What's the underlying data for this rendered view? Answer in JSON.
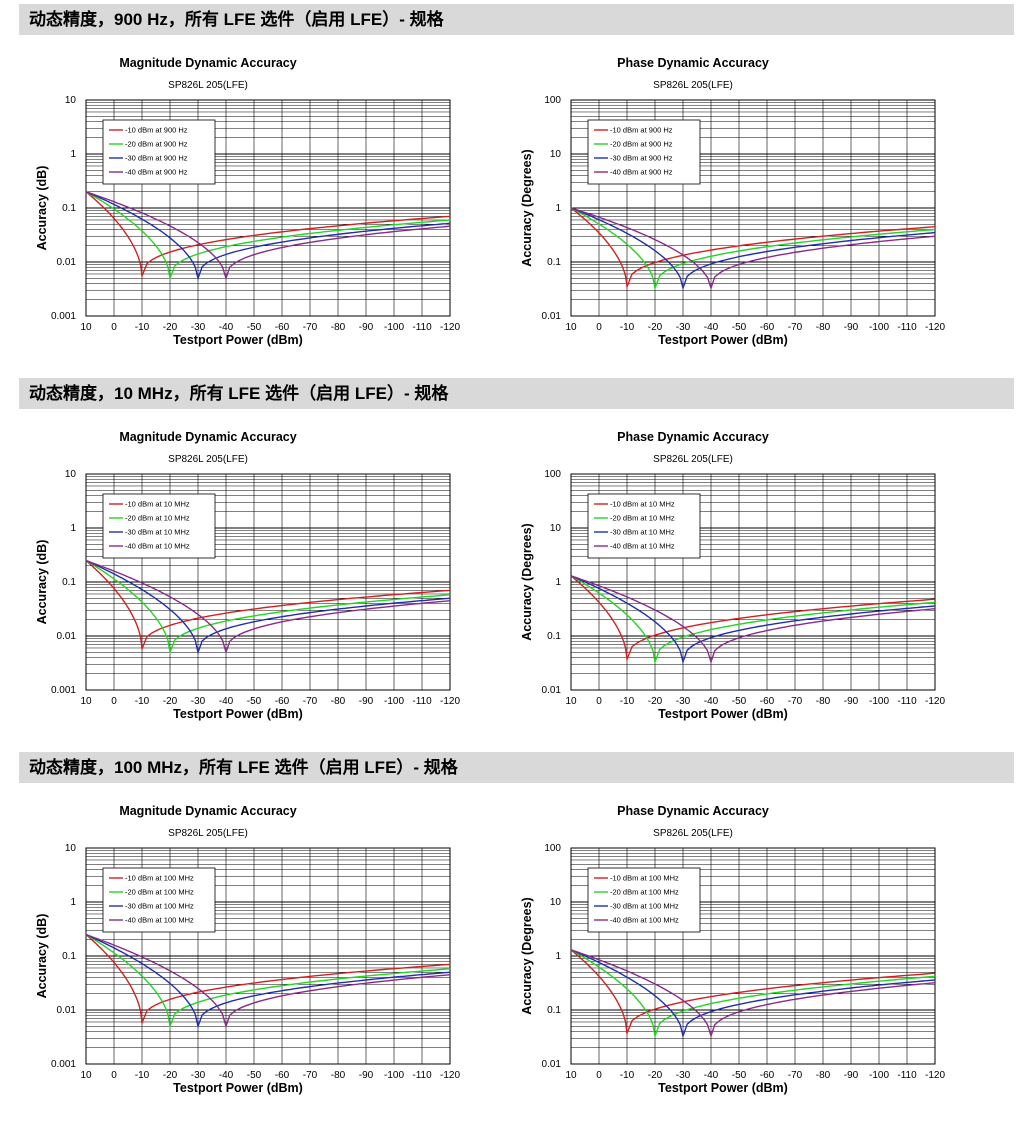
{
  "sections": [
    {
      "header": "动态精度，900 Hz，所有 LFE 选件（启用 LFE）- 规格",
      "charts": [
        {
          "type": "line",
          "title": "Magnitude Dynamic Accuracy",
          "subtitle": "SP826L 205(LFE)",
          "xlabel": "Testport Power (dBm)",
          "ylabel": "Accuracy (dB)",
          "xlim": [
            10,
            -120
          ],
          "ylim": [
            0.001,
            10
          ],
          "yscale": "log",
          "x_ticks": [
            "10",
            "0",
            "-10",
            "-20",
            "-30",
            "-40",
            "-50",
            "-60",
            "-70",
            "-80",
            "-90",
            "-100",
            "-110",
            "-120"
          ],
          "y_ticks": [
            "10",
            "1",
            "0.1",
            "0.01",
            "0.001"
          ],
          "legend": [
            "-10 dBm at 900 Hz",
            "-20 dBm at 900 Hz",
            "-30 dBm at 900 Hz",
            "-40 dBm at 900 Hz"
          ],
          "series": [
            {
              "name": "-10 dBm at 900 Hz",
              "ref": -10,
              "floor": 0.0055,
              "start": 0.2,
              "end": 0.07
            },
            {
              "name": "-20 dBm at 900 Hz",
              "ref": -20,
              "floor": 0.005,
              "start": 0.2,
              "end": 0.06
            },
            {
              "name": "-30 dBm at 900 Hz",
              "ref": -30,
              "floor": 0.005,
              "start": 0.2,
              "end": 0.052
            },
            {
              "name": "-40 dBm at 900 Hz",
              "ref": -40,
              "floor": 0.005,
              "start": 0.2,
              "end": 0.046
            }
          ]
        },
        {
          "type": "line",
          "title": "Phase Dynamic Accuracy",
          "subtitle": "SP826L 205(LFE)",
          "xlabel": "Testport Power (dBm)",
          "ylabel": "Accuracy (Degrees)",
          "xlim": [
            10,
            -120
          ],
          "ylim": [
            0.01,
            100
          ],
          "yscale": "log",
          "x_ticks": [
            "10",
            "0",
            "-10",
            "-20",
            "-30",
            "-40",
            "-50",
            "-60",
            "-70",
            "-80",
            "-90",
            "-100",
            "-110",
            "-120"
          ],
          "y_ticks": [
            "100",
            "10",
            "1",
            "0.1",
            "0.01"
          ],
          "legend": [
            "-10 dBm at 900 Hz",
            "-20 dBm at 900 Hz",
            "-30 dBm at 900 Hz",
            "-40 dBm at 900 Hz"
          ],
          "series": [
            {
              "name": "-10 dBm at 900 Hz",
              "ref": -10,
              "floor": 0.035,
              "start": 1.0,
              "end": 0.45
            },
            {
              "name": "-20 dBm at 900 Hz",
              "ref": -20,
              "floor": 0.033,
              "start": 1.0,
              "end": 0.4
            },
            {
              "name": "-30 dBm at 900 Hz",
              "ref": -30,
              "floor": 0.033,
              "start": 1.0,
              "end": 0.35
            },
            {
              "name": "-40 dBm at 900 Hz",
              "ref": -40,
              "floor": 0.033,
              "start": 1.0,
              "end": 0.3
            }
          ]
        }
      ]
    },
    {
      "header": "动态精度，10 MHz，所有 LFE 选件（启用 LFE）- 规格",
      "charts": [
        {
          "type": "line",
          "title": "Magnitude Dynamic Accuracy",
          "subtitle": "SP826L 205(LFE)",
          "xlabel": "Testport Power (dBm)",
          "ylabel": "Accuracy (dB)",
          "xlim": [
            10,
            -120
          ],
          "ylim": [
            0.001,
            10
          ],
          "yscale": "log",
          "x_ticks": [
            "10",
            "0",
            "-10",
            "-20",
            "-30",
            "-40",
            "-50",
            "-60",
            "-70",
            "-80",
            "-90",
            "-100",
            "-110",
            "-120"
          ],
          "y_ticks": [
            "10",
            "1",
            "0.1",
            "0.01",
            "0.001"
          ],
          "legend": [
            "-10 dBm at 10 MHz",
            "-20 dBm at 10 MHz",
            "-30 dBm at 10 MHz",
            "-40 dBm at 10 MHz"
          ],
          "series": [
            {
              "name": "-10 dBm at 10 MHz",
              "ref": -10,
              "floor": 0.0058,
              "start": 0.25,
              "end": 0.07
            },
            {
              "name": "-20 dBm at 10 MHz",
              "ref": -20,
              "floor": 0.005,
              "start": 0.25,
              "end": 0.058
            },
            {
              "name": "-30 dBm at 10 MHz",
              "ref": -30,
              "floor": 0.005,
              "start": 0.25,
              "end": 0.05
            },
            {
              "name": "-40 dBm at 10 MHz",
              "ref": -40,
              "floor": 0.005,
              "start": 0.25,
              "end": 0.045
            }
          ]
        },
        {
          "type": "line",
          "title": "Phase Dynamic Accuracy",
          "subtitle": "SP826L 205(LFE)",
          "xlabel": "Testport Power (dBm)",
          "ylabel": "Accuracy (Degrees)",
          "xlim": [
            10,
            -120
          ],
          "ylim": [
            0.01,
            100
          ],
          "yscale": "log",
          "x_ticks": [
            "10",
            "0",
            "-10",
            "-20",
            "-30",
            "-40",
            "-50",
            "-60",
            "-70",
            "-80",
            "-90",
            "-100",
            "-110",
            "-120"
          ],
          "y_ticks": [
            "100",
            "10",
            "1",
            "0.1",
            "0.01"
          ],
          "legend": [
            "-10 dBm at 10 MHz",
            "-20 dBm at 10 MHz",
            "-30 dBm at 10 MHz",
            "-40 dBm at 10 MHz"
          ],
          "series": [
            {
              "name": "-10 dBm at 10 MHz",
              "ref": -10,
              "floor": 0.037,
              "start": 1.3,
              "end": 0.48
            },
            {
              "name": "-20 dBm at 10 MHz",
              "ref": -20,
              "floor": 0.033,
              "start": 1.3,
              "end": 0.42
            },
            {
              "name": "-30 dBm at 10 MHz",
              "ref": -30,
              "floor": 0.033,
              "start": 1.3,
              "end": 0.36
            },
            {
              "name": "-40 dBm at 10 MHz",
              "ref": -40,
              "floor": 0.033,
              "start": 1.3,
              "end": 0.32
            }
          ]
        }
      ]
    },
    {
      "header": "动态精度，100 MHz，所有 LFE 选件（启用 LFE）- 规格",
      "charts": [
        {
          "type": "line",
          "title": "Magnitude Dynamic Accuracy",
          "subtitle": "SP826L 205(LFE)",
          "xlabel": "Testport Power (dBm)",
          "ylabel": "Accuracy (dB)",
          "xlim": [
            10,
            -120
          ],
          "ylim": [
            0.001,
            10
          ],
          "yscale": "log",
          "x_ticks": [
            "10",
            "0",
            "-10",
            "-20",
            "-30",
            "-40",
            "-50",
            "-60",
            "-70",
            "-80",
            "-90",
            "-100",
            "-110",
            "-120"
          ],
          "y_ticks": [
            "10",
            "1",
            "0.1",
            "0.01",
            "0.001"
          ],
          "legend": [
            "-10 dBm at 100 MHz",
            "-20 dBm at 100 MHz",
            "-30 dBm at 100 MHz",
            "-40 dBm at 100 MHz"
          ],
          "series": [
            {
              "name": "-10 dBm at 100 MHz",
              "ref": -10,
              "floor": 0.0058,
              "start": 0.25,
              "end": 0.07
            },
            {
              "name": "-20 dBm at 100 MHz",
              "ref": -20,
              "floor": 0.005,
              "start": 0.25,
              "end": 0.058
            },
            {
              "name": "-30 dBm at 100 MHz",
              "ref": -30,
              "floor": 0.005,
              "start": 0.25,
              "end": 0.05
            },
            {
              "name": "-40 dBm at 100 MHz",
              "ref": -40,
              "floor": 0.005,
              "start": 0.25,
              "end": 0.045
            }
          ]
        },
        {
          "type": "line",
          "title": "Phase Dynamic Accuracy",
          "subtitle": "SP826L 205(LFE)",
          "xlabel": "Testport Power (dBm)",
          "ylabel": "Accuracy (Degrees)",
          "xlim": [
            10,
            -120
          ],
          "ylim": [
            0.01,
            100
          ],
          "yscale": "log",
          "x_ticks": [
            "10",
            "0",
            "-10",
            "-20",
            "-30",
            "-40",
            "-50",
            "-60",
            "-70",
            "-80",
            "-90",
            "-100",
            "-110",
            "-120"
          ],
          "y_ticks": [
            "100",
            "10",
            "1",
            "0.1",
            "0.01"
          ],
          "legend": [
            "-10 dBm at 100 MHz",
            "-20 dBm at 100 MHz",
            "-30 dBm at 100 MHz",
            "-40 dBm at 100 MHz"
          ],
          "series": [
            {
              "name": "-10 dBm at 100 MHz",
              "ref": -10,
              "floor": 0.037,
              "start": 1.3,
              "end": 0.48
            },
            {
              "name": "-20 dBm at 100 MHz",
              "ref": -20,
              "floor": 0.033,
              "start": 1.3,
              "end": 0.42
            },
            {
              "name": "-30 dBm at 100 MHz",
              "ref": -30,
              "floor": 0.033,
              "start": 1.3,
              "end": 0.36
            },
            {
              "name": "-40 dBm at 100 MHz",
              "ref": -40,
              "floor": 0.033,
              "start": 1.3,
              "end": 0.32
            }
          ]
        }
      ]
    }
  ],
  "colors": {
    "series": [
      "#d42020",
      "#22d622",
      "#1f2fb0",
      "#8a2a8a"
    ],
    "header_bg": "#d9d9d9",
    "grid": "#000000"
  }
}
